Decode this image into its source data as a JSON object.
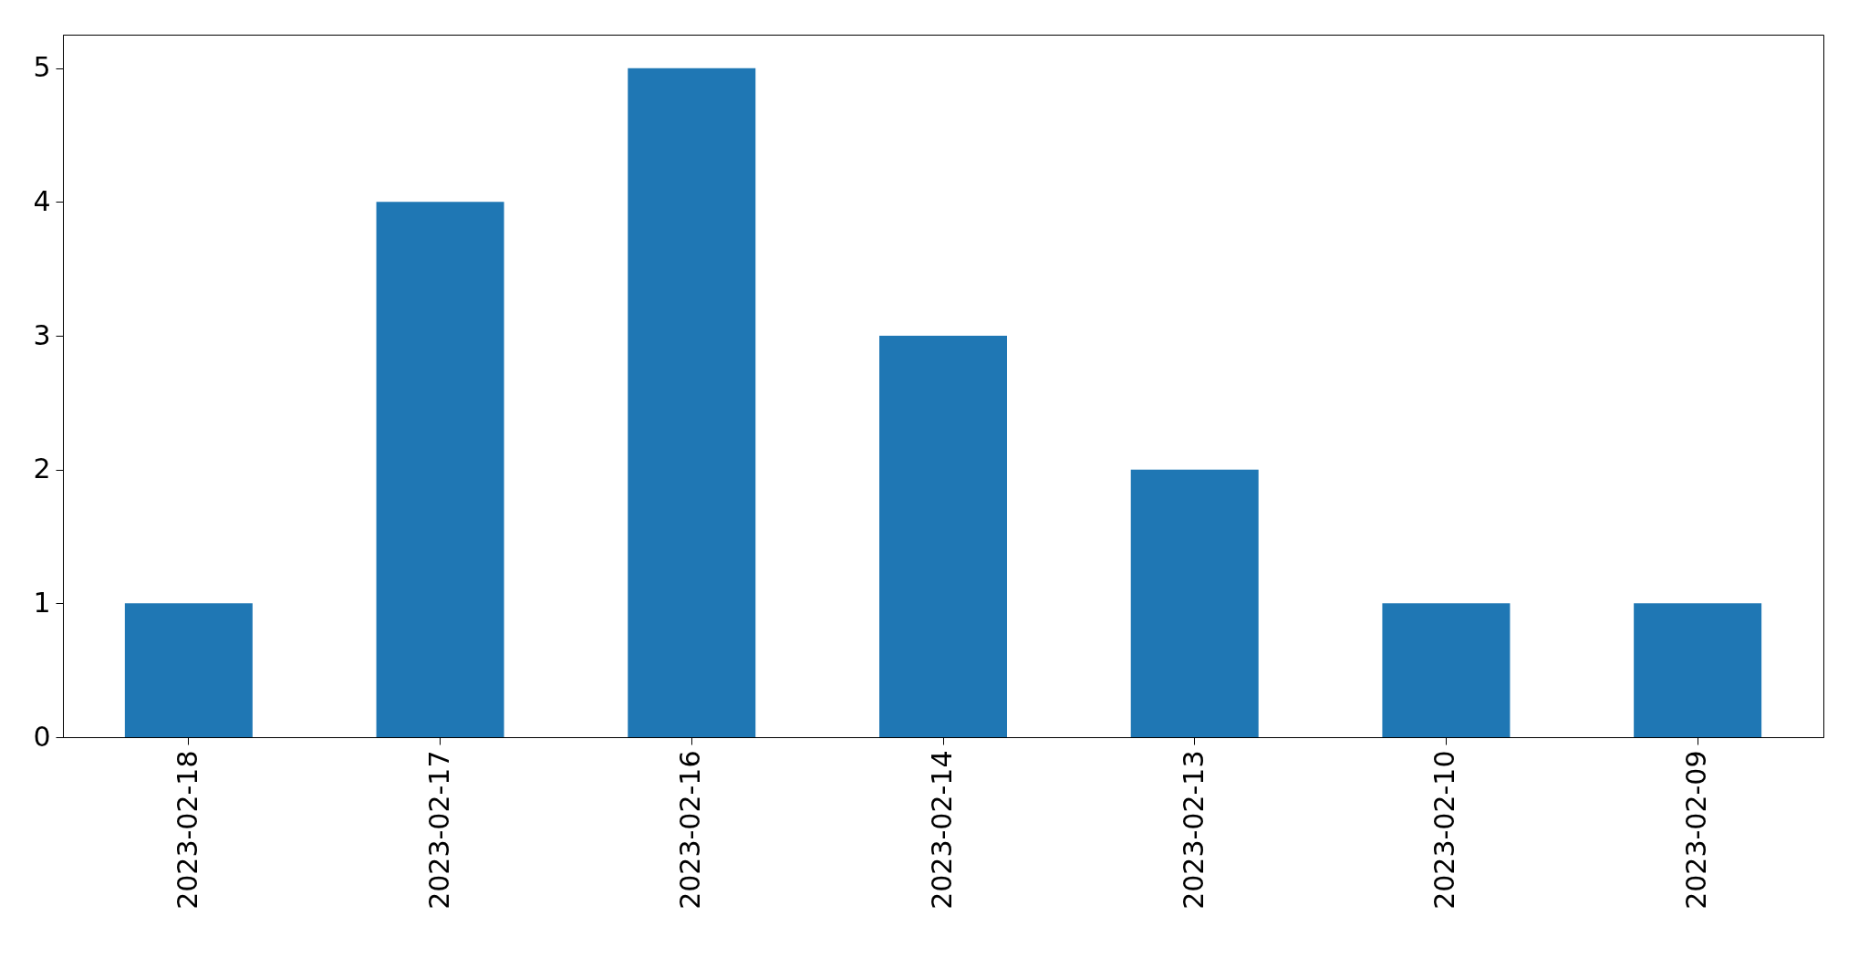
{
  "chart_data": {
    "type": "bar",
    "categories": [
      "2023-02-18",
      "2023-02-17",
      "2023-02-16",
      "2023-02-14",
      "2023-02-13",
      "2023-02-10",
      "2023-02-09"
    ],
    "values": [
      1,
      4,
      5,
      3,
      2,
      1,
      1
    ],
    "color": "#1f77b4",
    "ylim": [
      0,
      5.25
    ],
    "yticks": [
      0,
      1,
      2,
      3,
      4,
      5
    ],
    "grid": false
  }
}
